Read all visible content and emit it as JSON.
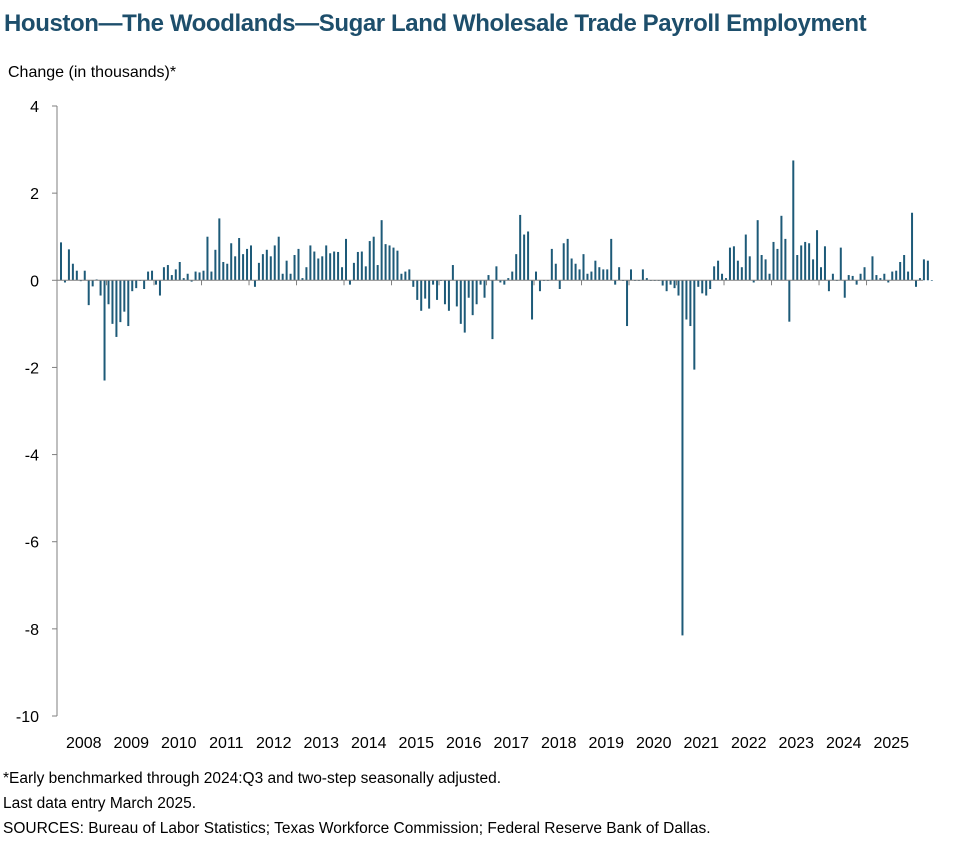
{
  "title": "Houston—The Woodlands—Sugar Land Wholesale Trade Payroll Employment",
  "footnotes": [
    "*Early benchmarked through 2024:Q3 and two-step seasonally adjusted.",
    "Last data entry March 2025.",
    "SOURCES: Bureau of Labor Statistics; Texas Workforce Commission; Federal Reserve Bank of Dallas."
  ],
  "colors": {
    "title": "#1d4e6b",
    "bar": "#1d5a78",
    "axis": "#7f7f7f"
  },
  "chart_data": {
    "type": "bar",
    "title": "Houston—The Woodlands—Sugar Land Wholesale Trade Payroll Employment",
    "ylabel": "Change (in thousands)*",
    "xlabel": "",
    "ylim": [
      -10,
      4
    ],
    "yticks": [
      4,
      2,
      0,
      -2,
      -4,
      -6,
      -8,
      -10
    ],
    "year_labels": [
      "2008",
      "2009",
      "2010",
      "2011",
      "2012",
      "2013",
      "2014",
      "2015",
      "2016",
      "2017",
      "2018",
      "2019",
      "2020",
      "2021",
      "2022",
      "2023",
      "2024",
      "2025"
    ],
    "start": "2008-01",
    "end": "2025-03",
    "frequency": "monthly",
    "grid": false,
    "legend": "none",
    "series": [
      {
        "values": [
          0.87,
          -0.05,
          0.71,
          0.38,
          0.22,
          -0.02,
          0.22,
          -0.57,
          -0.14,
          0.02,
          -0.35,
          -2.3,
          -0.55,
          -1.0,
          -1.3,
          -0.96,
          -0.72,
          -1.05,
          -0.25,
          -0.18,
          0.0,
          -0.2,
          0.2,
          0.22,
          -0.1,
          -0.35,
          0.3,
          0.35,
          0.12,
          0.25,
          0.42,
          0.05,
          0.15,
          -0.03,
          0.2,
          0.18,
          0.22,
          1.0,
          0.2,
          0.7,
          1.42,
          0.42,
          0.38,
          0.85,
          0.55,
          0.97,
          0.6,
          0.72,
          0.8,
          -0.15,
          0.4,
          0.6,
          0.7,
          0.55,
          0.8,
          1.0,
          0.15,
          0.45,
          0.15,
          0.58,
          0.72,
          0.05,
          0.3,
          0.8,
          0.66,
          0.5,
          0.55,
          0.8,
          0.62,
          0.66,
          0.65,
          0.3,
          0.95,
          -0.1,
          0.4,
          0.65,
          0.66,
          0.32,
          0.9,
          1.0,
          0.35,
          1.38,
          0.83,
          0.8,
          0.75,
          0.68,
          0.15,
          0.2,
          0.25,
          -0.15,
          -0.45,
          -0.7,
          -0.42,
          -0.65,
          -0.1,
          -0.45,
          0.0,
          -0.55,
          -0.7,
          0.35,
          -0.6,
          -1.0,
          -1.2,
          -0.4,
          -0.8,
          -0.55,
          -0.1,
          -0.4,
          0.12,
          -1.35,
          0.32,
          -0.05,
          -0.1,
          0.05,
          0.2,
          0.6,
          1.5,
          1.05,
          1.12,
          -0.9,
          0.2,
          -0.25,
          0.0,
          0.0,
          0.72,
          0.38,
          -0.2,
          0.85,
          0.95,
          0.5,
          0.38,
          0.25,
          0.6,
          0.15,
          0.2,
          0.45,
          0.3,
          0.25,
          0.25,
          0.95,
          -0.1,
          0.3,
          0.0,
          -1.05,
          0.25,
          0.0,
          0.0,
          0.25,
          0.05,
          0.0,
          0.0,
          0.0,
          -0.12,
          -0.25,
          -0.1,
          -0.18,
          -0.35,
          -8.15,
          -0.9,
          -1.05,
          -2.05,
          -0.15,
          -0.3,
          -0.35,
          -0.2,
          0.32,
          0.45,
          0.15,
          0.05,
          0.75,
          0.78,
          0.45,
          0.3,
          1.05,
          0.55,
          -0.05,
          1.38,
          0.58,
          0.48,
          0.15,
          0.88,
          0.72,
          1.48,
          0.95,
          -0.95,
          2.75,
          0.58,
          0.8,
          0.88,
          0.85,
          0.48,
          1.15,
          0.3,
          0.78,
          -0.25,
          0.15,
          0.0,
          0.75,
          -0.4,
          0.12,
          0.1,
          -0.1,
          0.15,
          0.3,
          0.0,
          0.55,
          0.12,
          0.05,
          0.15,
          -0.05,
          0.2,
          0.22,
          0.42,
          0.58,
          0.2,
          1.55,
          -0.15,
          0.05,
          0.48,
          0.45,
          0.0
        ]
      }
    ]
  }
}
